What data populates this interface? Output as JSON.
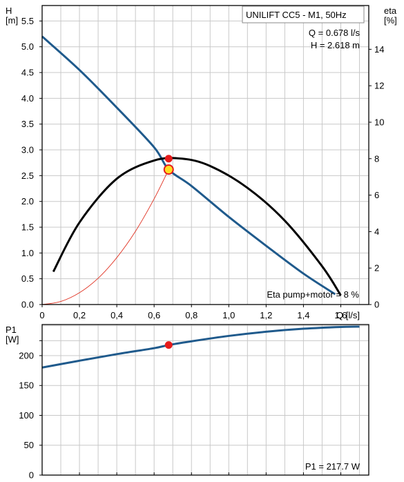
{
  "chart_data": [
    {
      "type": "line",
      "title": "UNILIFT CC5 - M1, 50Hz",
      "readout": {
        "q": "Q = 0.678 l/s",
        "h": "H = 2.618 m"
      },
      "efficiency_note": "Eta pump+motor = 8 %",
      "xlabel": "Q [l/s]",
      "ylabel_line1": "H",
      "ylabel_line2": "[m]",
      "y2label_line1": "eta",
      "y2label_line2": "[%]",
      "xlim": [
        0,
        1.75
      ],
      "ylim": [
        0,
        5.8
      ],
      "y2lim": [
        0,
        16.4
      ],
      "grid": true,
      "x_ticks": [
        "0",
        "0,2",
        "0,4",
        "0,6",
        "0,8",
        "1,0",
        "1,2",
        "1,4",
        "1,6"
      ],
      "x_tick_values": [
        0,
        0.2,
        0.4,
        0.6,
        0.8,
        1.0,
        1.2,
        1.4,
        1.6
      ],
      "y_ticks": [
        "0.0",
        "0.5",
        "1.0",
        "1.5",
        "2.0",
        "2.5",
        "3.0",
        "3.5",
        "4.0",
        "4.5",
        "5.0",
        "5.5"
      ],
      "y_tick_values": [
        0,
        0.5,
        1.0,
        1.5,
        2.0,
        2.5,
        3.0,
        3.5,
        4.0,
        4.5,
        5.0,
        5.5
      ],
      "y2_ticks": [
        "0",
        "2",
        "4",
        "6",
        "8",
        "10",
        "12",
        "14"
      ],
      "y2_tick_values": [
        0,
        2,
        4,
        6,
        8,
        10,
        12,
        14
      ],
      "series": [
        {
          "key": "head",
          "axis": "y",
          "color": "#1f5a8c",
          "x": [
            0.0,
            0.2,
            0.4,
            0.6,
            0.678,
            0.8,
            1.0,
            1.2,
            1.4,
            1.57
          ],
          "y": [
            5.2,
            4.55,
            3.82,
            3.05,
            2.618,
            2.3,
            1.7,
            1.14,
            0.6,
            0.2
          ]
        },
        {
          "key": "efficiency",
          "axis": "y2",
          "color": "#000000",
          "x": [
            0.06,
            0.2,
            0.4,
            0.6,
            0.75,
            0.9,
            1.1,
            1.3,
            1.5,
            1.6
          ],
          "y": [
            1.8,
            4.5,
            6.9,
            7.9,
            8.0,
            7.6,
            6.4,
            4.6,
            2.1,
            0.5
          ]
        },
        {
          "key": "system-curve",
          "axis": "y",
          "color": "#e03020",
          "x": [
            0.0,
            0.1,
            0.2,
            0.3,
            0.4,
            0.5,
            0.6,
            0.678
          ],
          "y": [
            0.0,
            0.06,
            0.23,
            0.51,
            0.91,
            1.42,
            2.05,
            2.618
          ]
        }
      ],
      "duty_point": {
        "x": 0.678,
        "y": 2.618,
        "color": "#ffdd22"
      },
      "efficiency_point": {
        "x": 0.678,
        "y2": 8.0,
        "color": "#e51b1b"
      }
    },
    {
      "type": "line",
      "ylabel_line1": "P1",
      "ylabel_line2": "[W]",
      "xlim": [
        0,
        1.75
      ],
      "ylim": [
        0,
        252
      ],
      "grid": true,
      "y_ticks": [
        "0",
        "50",
        "100",
        "150",
        "200"
      ],
      "y_tick_values": [
        0,
        50,
        100,
        150,
        200
      ],
      "readout": "P1 = 217.7 W",
      "series": [
        {
          "key": "power",
          "color": "#1f5a8c",
          "x": [
            0.0,
            0.2,
            0.4,
            0.6,
            0.678,
            0.8,
            1.0,
            1.2,
            1.4,
            1.6,
            1.7
          ],
          "y": [
            180,
            191.5,
            202.5,
            212.5,
            217.7,
            224,
            233,
            240,
            245,
            248,
            248.5
          ]
        }
      ],
      "operating_point": {
        "x": 0.678,
        "y": 217.7,
        "color": "#e51b1b"
      }
    }
  ]
}
